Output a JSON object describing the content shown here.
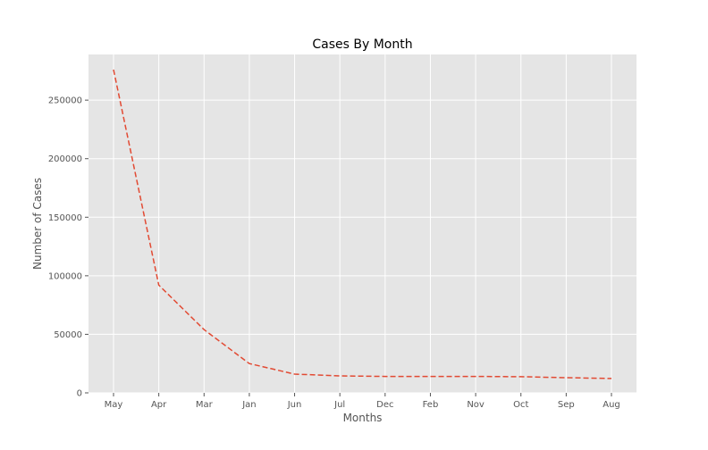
{
  "chart_data": {
    "type": "line",
    "title": "Cases By Month",
    "xlabel": "Months",
    "ylabel": "Number of Cases",
    "categories": [
      "May",
      "Apr",
      "Mar",
      "Jan",
      "Jun",
      "Jul",
      "Dec",
      "Feb",
      "Nov",
      "Oct",
      "Sep",
      "Aug"
    ],
    "series": [
      {
        "values": [
          276000,
          92000,
          54000,
          25000,
          16000,
          14500,
          14000,
          14000,
          14000,
          13800,
          13000,
          12300
        ],
        "color": "#e24a33",
        "line_style": "dashed"
      }
    ],
    "ylim": [
      0,
      289000
    ],
    "yticks": [
      0,
      50000,
      100000,
      150000,
      200000,
      250000
    ],
    "ytick_labels": [
      "0",
      "50000",
      "100000",
      "150000",
      "200000",
      "250000"
    ],
    "grid": true,
    "style": "ggplot",
    "plot_background": "#e5e5e5",
    "grid_color": "#ffffff"
  }
}
